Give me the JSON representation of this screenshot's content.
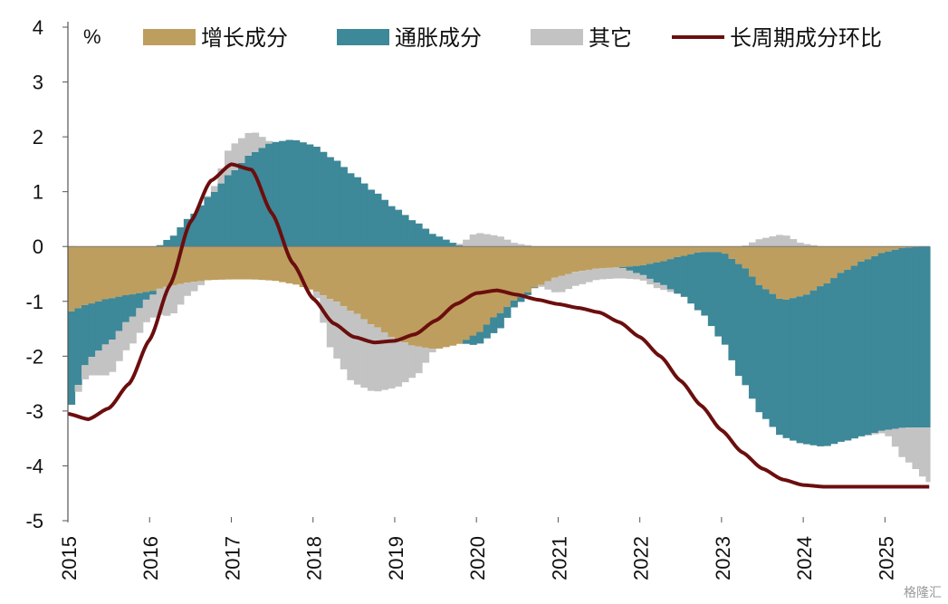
{
  "chart_data": {
    "type": "area",
    "unit_label": "%",
    "ylim": [
      -5,
      4
    ],
    "yticks": [
      4,
      3,
      2,
      1,
      0,
      -1,
      -2,
      -3,
      -4,
      -5
    ],
    "xlim": [
      2015.0,
      2025.55
    ],
    "xticks": [
      "2015",
      "2016",
      "2017",
      "2018",
      "2019",
      "2020",
      "2021",
      "2022",
      "2023",
      "2024",
      "2025"
    ],
    "legend_position": "top",
    "colors": {
      "growth": "#BE9E5E",
      "inflation": "#3D8899",
      "other": "#C3C3C3",
      "line": "#6B0E0E"
    },
    "x": [
      2015.0,
      2015.25,
      2015.5,
      2015.75,
      2016.0,
      2016.25,
      2016.5,
      2016.75,
      2017.0,
      2017.25,
      2017.5,
      2017.75,
      2018.0,
      2018.25,
      2018.5,
      2018.75,
      2019.0,
      2019.25,
      2019.5,
      2019.75,
      2020.0,
      2020.25,
      2020.5,
      2020.75,
      2021.0,
      2021.25,
      2021.5,
      2021.75,
      2022.0,
      2022.25,
      2022.5,
      2022.75,
      2023.0,
      2023.25,
      2023.5,
      2023.75,
      2024.0,
      2024.25,
      2024.5,
      2024.75,
      2025.0,
      2025.25,
      2025.55
    ],
    "series": [
      {
        "name": "增长成分",
        "kind": "area",
        "values": [
          -1.2,
          -1.05,
          -0.95,
          -0.88,
          -0.82,
          -0.72,
          -0.65,
          -0.61,
          -0.6,
          -0.6,
          -0.62,
          -0.68,
          -0.8,
          -0.98,
          -1.2,
          -1.45,
          -1.68,
          -1.82,
          -1.87,
          -1.8,
          -1.6,
          -1.25,
          -0.95,
          -0.72,
          -0.55,
          -0.45,
          -0.4,
          -0.38,
          -0.35,
          -0.28,
          -0.18,
          -0.1,
          -0.1,
          -0.35,
          -0.75,
          -0.98,
          -0.9,
          -0.7,
          -0.45,
          -0.25,
          -0.1,
          -0.02,
          0.0
        ]
      },
      {
        "name": "通胀成分",
        "kind": "area",
        "values": [
          -1.8,
          -1.0,
          -0.8,
          -0.45,
          -0.1,
          0.15,
          0.55,
          0.95,
          1.35,
          1.7,
          1.9,
          1.95,
          1.85,
          1.6,
          1.3,
          1.0,
          0.7,
          0.45,
          0.2,
          0.05,
          -0.2,
          -0.3,
          -0.1,
          0.0,
          0.0,
          0.0,
          0.0,
          0.0,
          -0.15,
          -0.4,
          -0.7,
          -1.1,
          -1.6,
          -2.1,
          -2.35,
          -2.5,
          -2.7,
          -2.95,
          -3.1,
          -3.2,
          -3.25,
          -3.28,
          -3.3
        ]
      },
      {
        "name": "其它",
        "kind": "area",
        "values": [
          0.05,
          -0.3,
          -0.6,
          -0.5,
          -0.4,
          -0.55,
          -0.2,
          0.05,
          0.5,
          0.4,
          0.0,
          0.0,
          0.0,
          -1.0,
          -1.3,
          -1.2,
          -0.9,
          -0.55,
          0.0,
          0.0,
          0.25,
          0.2,
          0.05,
          0.0,
          -0.3,
          -0.25,
          -0.2,
          -0.2,
          -0.1,
          -0.1,
          0.0,
          0.0,
          0.0,
          0.0,
          0.15,
          0.22,
          0.05,
          0.0,
          0.0,
          0.0,
          -0.05,
          -0.6,
          -1.0
        ]
      },
      {
        "name": "长周期成分环比",
        "kind": "line",
        "values": [
          -3.05,
          -3.15,
          -2.95,
          -2.5,
          -1.7,
          -0.7,
          0.45,
          1.2,
          1.5,
          1.4,
          0.6,
          -0.3,
          -0.95,
          -1.4,
          -1.65,
          -1.75,
          -1.72,
          -1.6,
          -1.35,
          -1.05,
          -0.85,
          -0.8,
          -0.88,
          -0.97,
          -1.05,
          -1.12,
          -1.2,
          -1.38,
          -1.65,
          -2.0,
          -2.45,
          -2.9,
          -3.35,
          -3.75,
          -4.05,
          -4.25,
          -4.35,
          -4.38,
          -4.38,
          -4.38,
          -4.38,
          -4.38,
          -4.38
        ]
      }
    ]
  },
  "watermark": "格隆汇"
}
